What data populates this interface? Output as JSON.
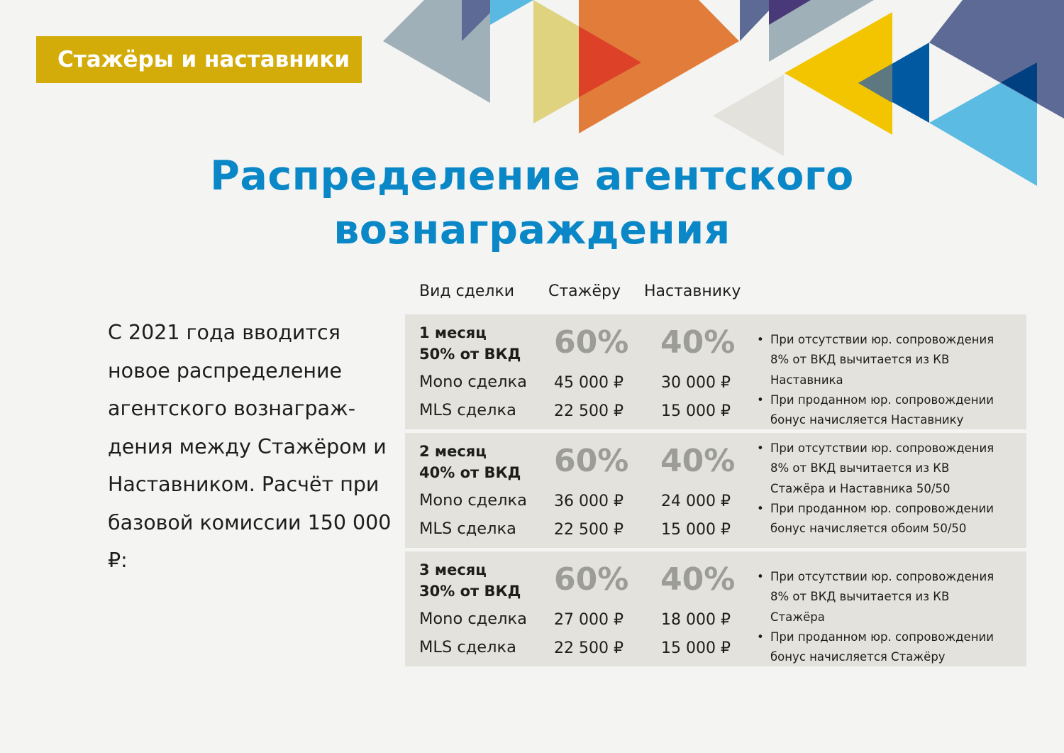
{
  "header": {
    "tag": "Стажёры и наставники",
    "title_line1": "Распределение агентского",
    "title_line2": "вознаграждения"
  },
  "intro": "С 2021 года вводится новое распределение агентского вознаграж­дения между Стажёром и Наставником. Расчёт при базовой комиссии 150 000 ₽:",
  "table": {
    "columns": [
      "Вид сделки",
      "Стажёру",
      "Наставнику"
    ],
    "rows": [
      {
        "period": "1 месяц",
        "share": "50% от ВКД",
        "intern_pct": "60%",
        "mentor_pct": "40%",
        "mono_label": "Mono сделка",
        "mono_intern": "45 000 ₽",
        "mono_mentor": "30 000 ₽",
        "mls_label": "MLS сделка",
        "mls_intern": "22 500 ₽",
        "mls_mentor": "15 000 ₽",
        "notes": [
          "При отсутствии юр. сопровождения 8% от ВКД вычитается из КВ Наставника",
          "При проданном юр. сопровождении бонус начисляется Наставнику"
        ]
      },
      {
        "period": "2 месяц",
        "share": "40% от ВКД",
        "intern_pct": "60%",
        "mentor_pct": "40%",
        "mono_label": "Mono сделка",
        "mono_intern": "36 000 ₽",
        "mono_mentor": "24 000 ₽",
        "mls_label": "MLS сделка",
        "mls_intern": "22 500 ₽",
        "mls_mentor": "15 000 ₽",
        "notes": [
          "При отсутствии юр. сопровождения 8% от ВКД вычитается из КВ Стажёра и Наставника 50/50",
          "При проданном юр. сопровождении бонус начисляется обоим 50/50"
        ]
      },
      {
        "period": "3 месяц",
        "share": "30% от ВКД",
        "intern_pct": "60%",
        "mentor_pct": "40%",
        "mono_label": "Mono сделка",
        "mono_intern": "27 000 ₽",
        "mono_mentor": "18 000 ₽",
        "mls_label": "MLS сделка",
        "mls_intern": "22 500 ₽",
        "mls_mentor": "15 000 ₽",
        "notes": [
          "При отсутствии юр. сопровождения 8% от ВКД вычитается из КВ Стажёра",
          "При проданном юр. сопровождении бонус начисляется Стажёру"
        ]
      }
    ]
  },
  "colors": {
    "title": "#0a87c6",
    "tag_bg": "#d3ac0a",
    "block_bg": "#e3e2dc",
    "percent": "#9d9d98"
  }
}
